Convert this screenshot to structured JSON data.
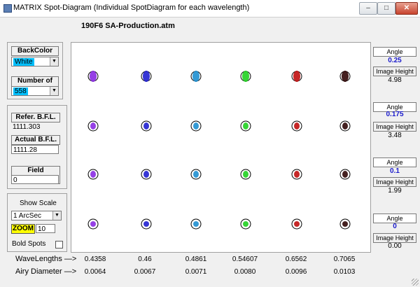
{
  "window": {
    "title": "MATRIX  Spot-Diagram (Individual SpotDiagram for each  wavelength)",
    "minimize": "–",
    "maximize": "□",
    "close": "✕"
  },
  "file_name": "190F6 SA-Production.atm",
  "left_panel": {
    "backcolor_label": "BackColor",
    "backcolor_value": "White",
    "rays_label": "Number of rays",
    "rays_value": "558",
    "refer_bfl_label": "Refer. B.F.L.",
    "refer_bfl_value": "1111.303",
    "actual_bfl_label": "Actual  B.F.L.",
    "actual_bfl_value": "1111.28",
    "field_curv_label": "Field Curv.Rad.",
    "field_curv_value": "0",
    "show_scale_label": "Show Scale",
    "scale_value": "1 ArcSec",
    "zoom_label": "ZOOM",
    "zoom_value": "10",
    "bold_spots_label": "Bold Spots"
  },
  "right_panel": [
    {
      "angle_label": "Angle",
      "angle": "0.25",
      "height_label": "Image Height",
      "height": "4.98"
    },
    {
      "angle_label": "Angle",
      "angle": "0.175",
      "height_label": "Image Height",
      "height": "3.48"
    },
    {
      "angle_label": "Angle",
      "angle": "0.1",
      "height_label": "Image Height",
      "height": "1.99"
    },
    {
      "angle_label": "Angle",
      "angle": "0",
      "height_label": "Image Height",
      "height": "0.00"
    }
  ],
  "bottom": {
    "wavelengths_label": "WaveLengths",
    "airy_label": "Airy Diameter",
    "arrow": "—>",
    "wavelengths": [
      "0.4358",
      "0.46",
      "0.4861",
      "0.54607",
      "0.6562",
      "0.7065"
    ],
    "airy": [
      "0.0064",
      "0.0067",
      "0.0071",
      "0.0080",
      "0.0096",
      "0.0103"
    ]
  },
  "spot_colors": [
    "#8a2be2",
    "#2020d0",
    "#1e8fd0",
    "#20d020",
    "#c01010",
    "#300808"
  ],
  "icons": {
    "app": "matrix-app-icon",
    "dropdown": "chevron-down-icon",
    "checkbox": "checkbox-icon"
  }
}
